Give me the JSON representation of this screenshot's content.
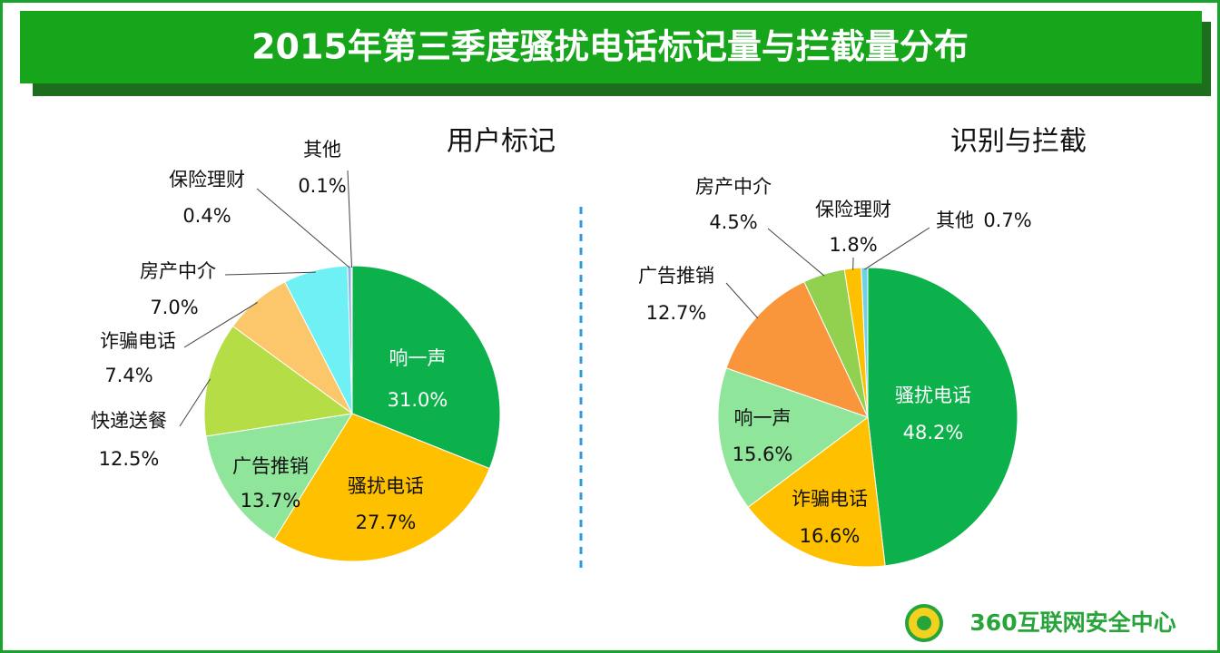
{
  "title": "2015年第三季度骚扰电话标记量与拦截量分布",
  "logo": "360互联网安全中心",
  "chart_data": [
    {
      "type": "pie",
      "title": "用户标记",
      "categories": [
        "响一声",
        "骚扰电话",
        "广告推销",
        "快递送餐",
        "诈骗电话",
        "房产中介",
        "保险理财",
        "其他"
      ],
      "values": [
        31.0,
        27.7,
        13.7,
        12.5,
        7.4,
        7.0,
        0.4,
        0.1
      ],
      "value_labels": [
        "31.0%",
        "27.7%",
        "13.7%",
        "12.5%",
        "7.4%",
        "7.0%",
        "0.4%",
        "0.1%"
      ],
      "colors": [
        "#0db14b",
        "#ffc000",
        "#8fe59a",
        "#b5dd45",
        "#fbc76a",
        "#6ff0f4",
        "#8db3e2",
        "#c6d9f1"
      ]
    },
    {
      "type": "pie",
      "title": "识别与拦截",
      "categories": [
        "骚扰电话",
        "诈骗电话",
        "响一声",
        "广告推销",
        "房产中介",
        "保险理财",
        "其他"
      ],
      "values": [
        48.2,
        16.6,
        15.6,
        12.7,
        4.5,
        1.8,
        0.7
      ],
      "value_labels": [
        "48.2%",
        "16.6%",
        "15.6%",
        "12.7%",
        "4.5%",
        "1.8%",
        "0.7%"
      ],
      "colors": [
        "#0db14b",
        "#ffc000",
        "#8fe59a",
        "#f9963c",
        "#92d050",
        "#ffc000",
        "#6fd0e8"
      ]
    }
  ]
}
